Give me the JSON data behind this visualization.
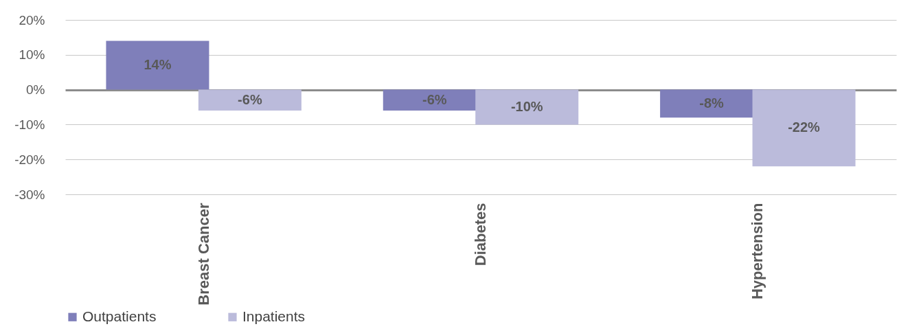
{
  "chart_data": {
    "type": "bar",
    "categories": [
      "Breast Cancer",
      "Diabetes",
      "Hypertension"
    ],
    "series": [
      {
        "name": "Outpatients",
        "color": "#7f7fba",
        "values": [
          14,
          -6,
          -8
        ],
        "value_labels": [
          "14%",
          "-6%",
          "-8%"
        ]
      },
      {
        "name": "Inpatients",
        "color": "#bbbbdb",
        "values": [
          -6,
          -10,
          -22
        ],
        "value_labels": [
          "-6%",
          "-10%",
          "-22%"
        ]
      }
    ],
    "ylim": [
      -30,
      20
    ],
    "yticks": [
      {
        "value": 20,
        "label": "20%"
      },
      {
        "value": 10,
        "label": "10%"
      },
      {
        "value": 0,
        "label": "0%"
      },
      {
        "value": -10,
        "label": "-10%"
      },
      {
        "value": -20,
        "label": "-20%"
      },
      {
        "value": -30,
        "label": "-30%"
      }
    ],
    "grid": "y",
    "legend": "bottom"
  }
}
